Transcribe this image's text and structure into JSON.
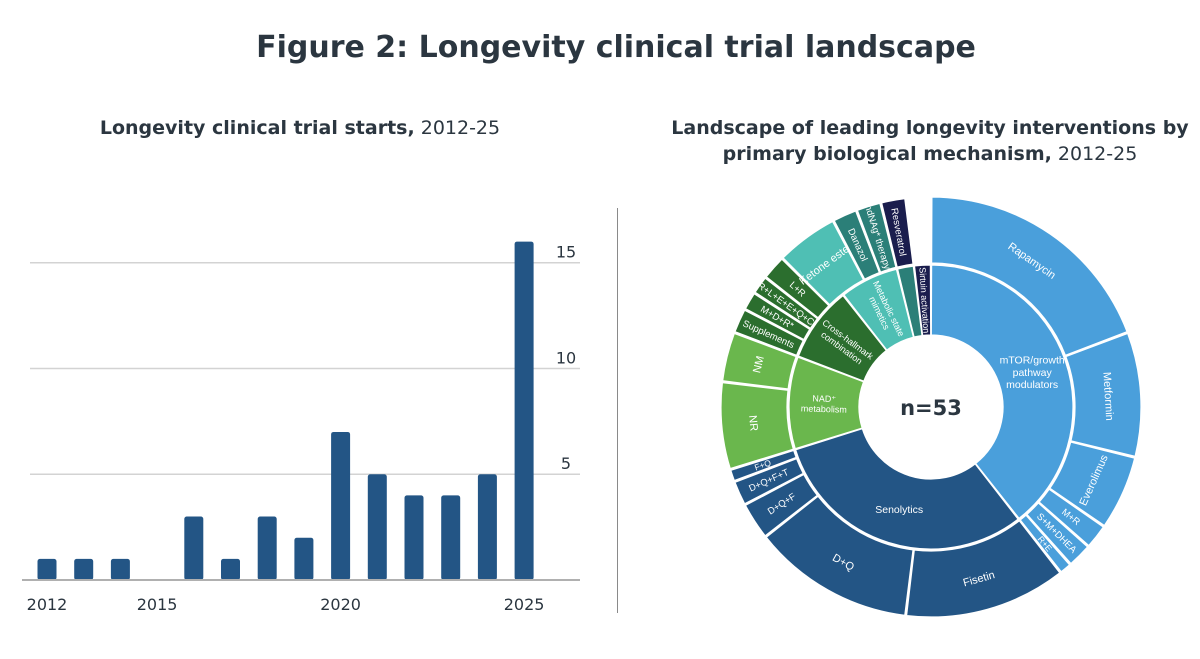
{
  "title": "Figure 2: Longevity clinical trial landscape",
  "bar_panel": {
    "title_bold": "Longevity clinical trial starts,",
    "title_light": " 2012-25"
  },
  "sunburst_panel": {
    "title_line1": "Landscape of leading longevity interventions by",
    "title_line2_bold": "primary biological mechanism,",
    "title_line2_light": " 2012-25",
    "center_label": "n=53"
  },
  "colors": {
    "bar": "#235585",
    "mtor": "#4a9fdb",
    "senolytics": "#235585",
    "nad": "#6ab74d",
    "cross": "#2b6e2e",
    "metabolic": "#4fbfb4",
    "hdnag": "#2b7f78",
    "sirtuin": "#1a1d4d",
    "grid": "#d3d3d3",
    "axis": "#b0b0b0"
  },
  "chart_data": [
    {
      "type": "bar",
      "categories": [
        "2012",
        "2013",
        "2014",
        "2015",
        "2016",
        "2017",
        "2018",
        "2019",
        "2020",
        "2021",
        "2022",
        "2023",
        "2024",
        "2025"
      ],
      "values": [
        1,
        1,
        1,
        0,
        3,
        1,
        3,
        2,
        7,
        5,
        4,
        4,
        5,
        16
      ],
      "x_tick_labels": [
        "2012",
        "2015",
        "2020",
        "2025"
      ],
      "y_ticks": [
        5,
        10,
        15
      ],
      "ylim": [
        0,
        16.5
      ],
      "grid": true,
      "y_axis_side": "right"
    },
    {
      "type": "sunburst",
      "total_label": "n=53",
      "inner": [
        {
          "name": "mTOR/growth pathway modulators",
          "lines": [
            "mTOR/growth",
            "pathway",
            "modulators"
          ],
          "value": 20.5,
          "color": "#4a9fdb"
        },
        {
          "name": "Senolytics",
          "lines": [
            "Senolytics"
          ],
          "value": 16.0,
          "color": "#235585"
        },
        {
          "name": "NAD+ metabolism",
          "lines": [
            "NAD⁺",
            "metabolism"
          ],
          "value": 5.5,
          "color": "#6ab74d"
        },
        {
          "name": "Cross-hallmark combination",
          "lines": [
            "Cross-hallmark",
            "combination"
          ],
          "value": 4.5,
          "color": "#2b6e2e"
        },
        {
          "name": "Metabolic state mimetics",
          "lines": [
            "Metabolic state",
            "mimetics"
          ],
          "value": 3.5,
          "color": "#4fbfb4"
        },
        {
          "name": "hdNAg",
          "lines": [
            ""
          ],
          "value": 1.0,
          "color": "#2b7f78"
        },
        {
          "name": "Sirtuin activation",
          "lines": [
            "Sirtuin activation"
          ],
          "value": 1.0,
          "color": "#1a1d4d"
        }
      ],
      "outer": [
        {
          "name": "Rapamycin",
          "value": 10.0,
          "color": "#4a9fdb"
        },
        {
          "name": "Metformin",
          "value": 5.0,
          "color": "#4a9fdb"
        },
        {
          "name": "Everolimus",
          "value": 3.0,
          "color": "#4a9fdb"
        },
        {
          "name": "M+R",
          "value": 1.0,
          "color": "#4a9fdb"
        },
        {
          "name": "S+M+DHEA",
          "value": 1.0,
          "color": "#4a9fdb"
        },
        {
          "name": "R+E",
          "value": 0.5,
          "color": "#4a9fdb"
        },
        {
          "name": "Fisetin",
          "value": 6.5,
          "color": "#235585"
        },
        {
          "name": "D+Q",
          "value": 6.5,
          "color": "#235585"
        },
        {
          "name": "D+Q+F",
          "value": 1.5,
          "color": "#235585"
        },
        {
          "name": "D+Q+F+T",
          "value": 1.0,
          "color": "#235585"
        },
        {
          "name": "F+Q",
          "value": 0.5,
          "color": "#235585"
        },
        {
          "name": "NR",
          "value": 3.5,
          "color": "#6ab74d"
        },
        {
          "name": "NM",
          "value": 2.0,
          "color": "#6ab74d"
        },
        {
          "name": "Supplements",
          "value": 1.0,
          "color": "#2b6e2e"
        },
        {
          "name": "M+D+R*",
          "value": 0.75,
          "color": "#2b6e2e"
        },
        {
          "name": "R+L+E+E+Q+C",
          "value": 0.75,
          "color": "#2b6e2e"
        },
        {
          "name": "L+R",
          "value": 1.0,
          "color": "#2b6e2e"
        },
        {
          "name": "Ketone ester",
          "value": 2.5,
          "color": "#4fbfb4"
        },
        {
          "name": "Danazol",
          "value": 1.0,
          "color": "#2b7f78"
        },
        {
          "name": "hdNAg* therapy",
          "value": 1.0,
          "color": "#2b7f78"
        },
        {
          "name": "Resveratrol",
          "value": 1.0,
          "color": "#1a1d4d"
        }
      ]
    }
  ]
}
